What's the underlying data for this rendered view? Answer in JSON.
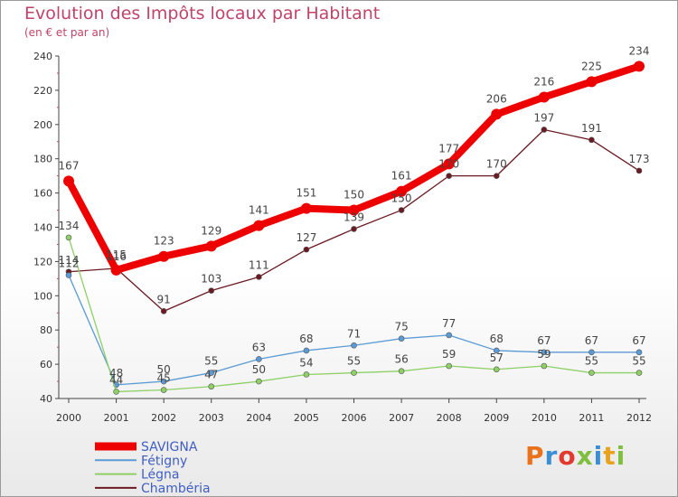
{
  "title": "Evolution des Impôts locaux par Habitant",
  "subtitle": "(en € et par an)",
  "logo": {
    "letters": [
      "P",
      "r",
      "o",
      "x",
      "i",
      "t",
      "i"
    ],
    "colors": [
      "#e8731c",
      "#3a8fd4",
      "#e23a2e",
      "#7fbf3f",
      "#3a8fd4",
      "#e8a21c",
      "#7fbf3f"
    ]
  },
  "chart_data": {
    "type": "line",
    "title": "Evolution des Impôts locaux par Habitant",
    "subtitle": "(en € et par an)",
    "x": [
      "2000",
      "2001",
      "2002",
      "2003",
      "2004",
      "2005",
      "2006",
      "2007",
      "2008",
      "2009",
      "2010",
      "2011",
      "2012"
    ],
    "ylim": [
      40,
      240
    ],
    "yticks": [
      "40",
      "60",
      "80",
      "100",
      "120",
      "140",
      "160",
      "180",
      "200",
      "220",
      "240"
    ],
    "grid": false,
    "series": [
      {
        "name": "SAVIGNA",
        "color": "#ee0000",
        "values": [
          167,
          115,
          123,
          129,
          141,
          151,
          150,
          161,
          177,
          206,
          216,
          225,
          234
        ]
      },
      {
        "name": "Fétigny",
        "color": "#5b9bd5",
        "values": [
          112,
          48,
          50,
          55,
          63,
          68,
          71,
          75,
          77,
          68,
          67,
          67,
          67
        ]
      },
      {
        "name": "Légna",
        "color": "#8ed066",
        "values": [
          134,
          44,
          45,
          47,
          50,
          54,
          55,
          56,
          59,
          57,
          59,
          55,
          55
        ]
      },
      {
        "name": "Chambéria",
        "color": "#6b1a22",
        "values": [
          114,
          116,
          91,
          103,
          111,
          127,
          139,
          150,
          170,
          170,
          197,
          191,
          173
        ]
      }
    ]
  }
}
